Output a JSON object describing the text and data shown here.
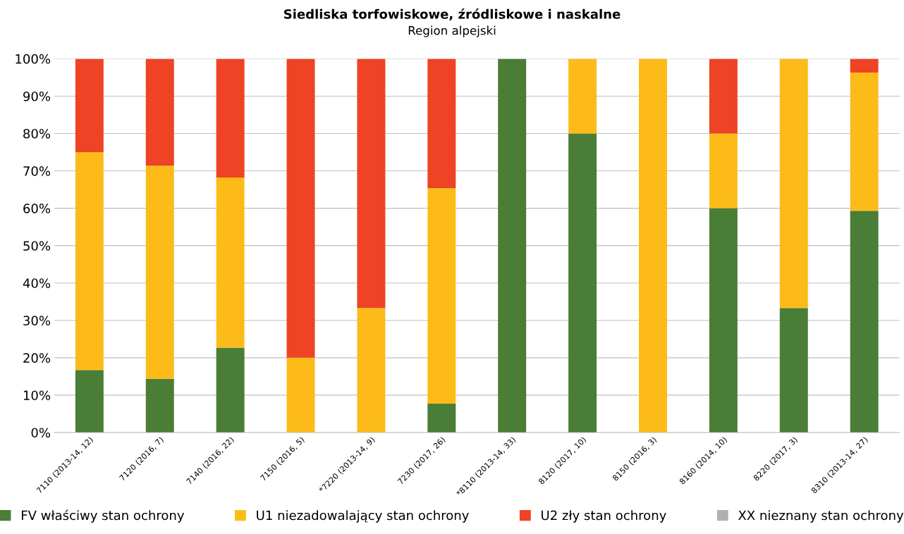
{
  "chart_data": {
    "type": "bar",
    "stacked": true,
    "title": "Siedliska torfowiskowe, źródliskowe i naskalne",
    "subtitle": "Region alpejski",
    "categories": [
      "7110 (2013-14, 12)",
      "7120 (2016, 7)",
      "7140 (2016, 22)",
      "7150 (2016, 5)",
      "*7220 (2013-14, 9)",
      "7230 (2017, 26)",
      "*8110 (2013-14, 33)",
      "8120 (2017, 10)",
      "8150 (2016, 3)",
      "8160 (2014, 10)",
      "8220 (2017, 3)",
      "8310 (2013-14, 27)"
    ],
    "series": [
      {
        "name": "FV właściwy stan ochrony",
        "color": "#4a7d35",
        "values": [
          16.7,
          14.3,
          22.7,
          0,
          0,
          7.7,
          100,
          80,
          0,
          60,
          33.3,
          59.3
        ]
      },
      {
        "name": "U1 niezadowalający stan ochrony",
        "color": "#fdbb1a",
        "values": [
          58.3,
          57.1,
          45.5,
          20,
          33.3,
          57.7,
          0,
          20,
          100,
          20,
          66.7,
          37.0
        ]
      },
      {
        "name": "U2 zły stan ochrony",
        "color": "#ee4324",
        "values": [
          25.0,
          28.6,
          31.8,
          80,
          66.7,
          34.6,
          0,
          0,
          0,
          20,
          0,
          3.7
        ]
      },
      {
        "name": "XX nieznany stan ochrony",
        "color": "#b0b0b0",
        "values": [
          0,
          0,
          0,
          0,
          0,
          0,
          0,
          0,
          0,
          0,
          0,
          0
        ]
      }
    ],
    "ylim": [
      0,
      100
    ],
    "yticks": [
      {
        "value": 0,
        "label": "0%"
      },
      {
        "value": 10,
        "label": "10%"
      },
      {
        "value": 20,
        "label": "20%"
      },
      {
        "value": 30,
        "label": "30%"
      },
      {
        "value": 40,
        "label": "40%"
      },
      {
        "value": 50,
        "label": "50%"
      },
      {
        "value": 60,
        "label": "60%"
      },
      {
        "value": 70,
        "label": "70%"
      },
      {
        "value": 80,
        "label": "80%"
      },
      {
        "value": 90,
        "label": "90%"
      },
      {
        "value": 100,
        "label": "100%"
      }
    ],
    "grid": "y",
    "legend": "bottom"
  }
}
